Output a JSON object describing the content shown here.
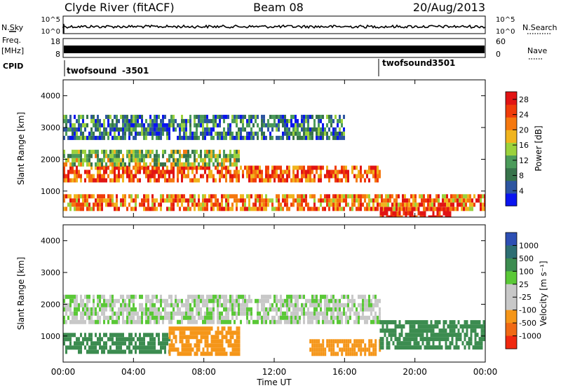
{
  "header": {
    "station": "Clyde River (fitACF)",
    "beam": "Beam 08",
    "date": "20/Aug/2013"
  },
  "strips": {
    "nsky_label": "N.Sky",
    "nsky_ticks": [
      "10^5",
      "10^0"
    ],
    "nsearch_label": "N.Search",
    "freq_label": "Freq.",
    "freq_unit": "[MHz]",
    "freq_ticks": [
      "18",
      "8"
    ],
    "nave_label": "Nave",
    "nave_ticks": [
      "60",
      "0"
    ],
    "cpid_label": "CPID",
    "cpid_entries": [
      {
        "name": "twofsound",
        "id": "-3501",
        "start_ut": "00:00"
      },
      {
        "name": "twofsound",
        "id": "3501",
        "start_ut": "18:10"
      }
    ]
  },
  "colors": {
    "power_scale": [
      "#0a14f0",
      "#2d55a0",
      "#37734b",
      "#4b9b5a",
      "#9bd23c",
      "#f0b41e",
      "#f5780f",
      "#f03c0a",
      "#e11414"
    ],
    "velocity_scale": [
      "#2d4fb4",
      "#2d6e73",
      "#3c8c50",
      "#5ac837",
      "#c8c8c8",
      "#c8c8c8",
      "#f59619",
      "#f06914",
      "#f0280f"
    ]
  },
  "chart_data": [
    {
      "type": "heatmap",
      "panel": "power",
      "xlabel": "",
      "ylabel": "Slant Range [km]",
      "x_ticks": [
        "00:00",
        "04:00",
        "08:00",
        "12:00",
        "16:00",
        "20:00",
        "00:00"
      ],
      "x_range_hours": [
        0,
        24
      ],
      "ylim": [
        180,
        4500
      ],
      "y_ticks": [
        1000,
        2000,
        3000,
        4000
      ],
      "colorbar": {
        "label": "Power [dB]",
        "range": [
          0,
          30
        ],
        "ticks": [
          4,
          8,
          12,
          16,
          20,
          24,
          28
        ]
      },
      "features": [
        {
          "start_h": 0,
          "end_h": 18,
          "range_km": [
            1300,
            1800
          ],
          "level_db": 24
        },
        {
          "start_h": 0,
          "end_h": 24,
          "range_km": [
            450,
            900
          ],
          "level_db": 22
        },
        {
          "start_h": 0,
          "end_h": 10,
          "range_km": [
            1800,
            2300
          ],
          "level_db": 14
        },
        {
          "start_h": 0,
          "end_h": 16,
          "range_km": [
            2700,
            3400
          ],
          "level_db": 8
        },
        {
          "start_h": 18,
          "end_h": 22,
          "range_km": [
            180,
            500
          ],
          "level_db": 28
        }
      ]
    },
    {
      "type": "heatmap",
      "panel": "velocity",
      "xlabel": "Time UT",
      "ylabel": "Slant Range [km]",
      "x_ticks": [
        "00:00",
        "04:00",
        "08:00",
        "12:00",
        "16:00",
        "20:00",
        "00:00"
      ],
      "x_range_hours": [
        0,
        24
      ],
      "ylim": [
        180,
        4500
      ],
      "y_ticks": [
        1000,
        2000,
        3000,
        4000
      ],
      "colorbar": {
        "label": "Velocity [m s⁻¹]",
        "ticks": [
          "1000",
          "500",
          "100",
          "25",
          "-25",
          "-100",
          "-500",
          "-1000"
        ]
      },
      "features": [
        {
          "start_h": 0,
          "end_h": 18,
          "range_km": [
            1400,
            2300
          ],
          "velocity_mps": 0
        },
        {
          "start_h": 0,
          "end_h": 6,
          "range_km": [
            500,
            1100
          ],
          "velocity_mps": 300
        },
        {
          "start_h": 6,
          "end_h": 10,
          "range_km": [
            500,
            1300
          ],
          "velocity_mps": -300
        },
        {
          "start_h": 14,
          "end_h": 18,
          "range_km": [
            500,
            900
          ],
          "velocity_mps": -200
        },
        {
          "start_h": 18,
          "end_h": 24,
          "range_km": [
            600,
            1500
          ],
          "velocity_mps": 400
        }
      ]
    }
  ]
}
